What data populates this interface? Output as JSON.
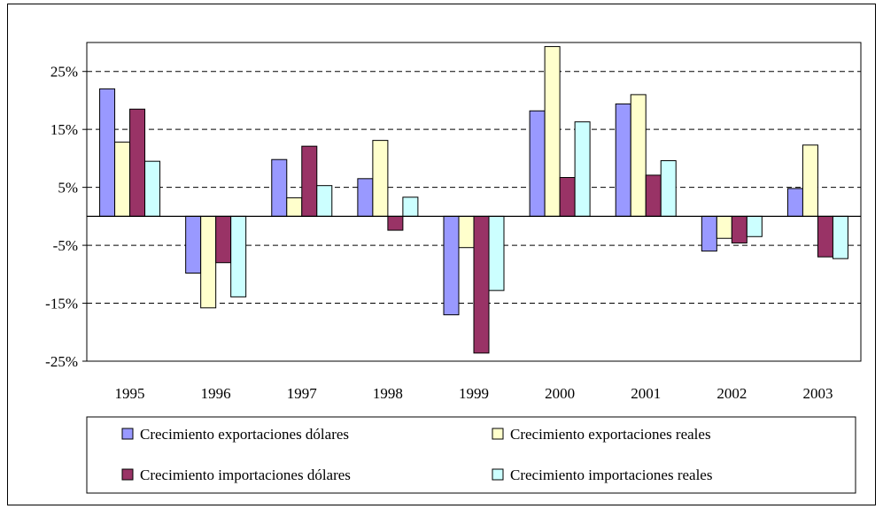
{
  "chart_data": {
    "type": "bar",
    "categories": [
      "1995",
      "1996",
      "1997",
      "1998",
      "1999",
      "2000",
      "2001",
      "2002",
      "2003"
    ],
    "series": [
      {
        "name": "Crecimiento exportaciones dólares",
        "color": "#9999ff",
        "values": [
          22.0,
          -9.8,
          9.8,
          6.5,
          -17.0,
          18.2,
          19.4,
          -6.0,
          4.8
        ]
      },
      {
        "name": "Crecimiento exportaciones reales",
        "color": "#ffffcc",
        "values": [
          12.8,
          -15.8,
          3.2,
          13.1,
          -5.4,
          29.3,
          21.0,
          -3.8,
          12.3
        ]
      },
      {
        "name": "Crecimiento importaciones dólares",
        "color": "#993366",
        "values": [
          18.5,
          -8.0,
          12.1,
          -2.4,
          -23.6,
          6.7,
          7.1,
          -4.6,
          -7.0
        ]
      },
      {
        "name": "Crecimiento importaciones reales",
        "color": "#ccffff",
        "values": [
          9.5,
          -13.9,
          5.3,
          3.3,
          -12.8,
          16.3,
          9.6,
          -3.5,
          -7.3
        ]
      }
    ],
    "y_ticks": [
      "25%",
      "15%",
      "5%",
      "-5%",
      "-15%",
      "-25%"
    ],
    "y_tick_values": [
      25,
      15,
      5,
      -5,
      -15,
      -25
    ],
    "ylim": [
      -25,
      30
    ],
    "grid": true,
    "legend_position": "bottom",
    "title": "",
    "xlabel": "",
    "ylabel": ""
  }
}
